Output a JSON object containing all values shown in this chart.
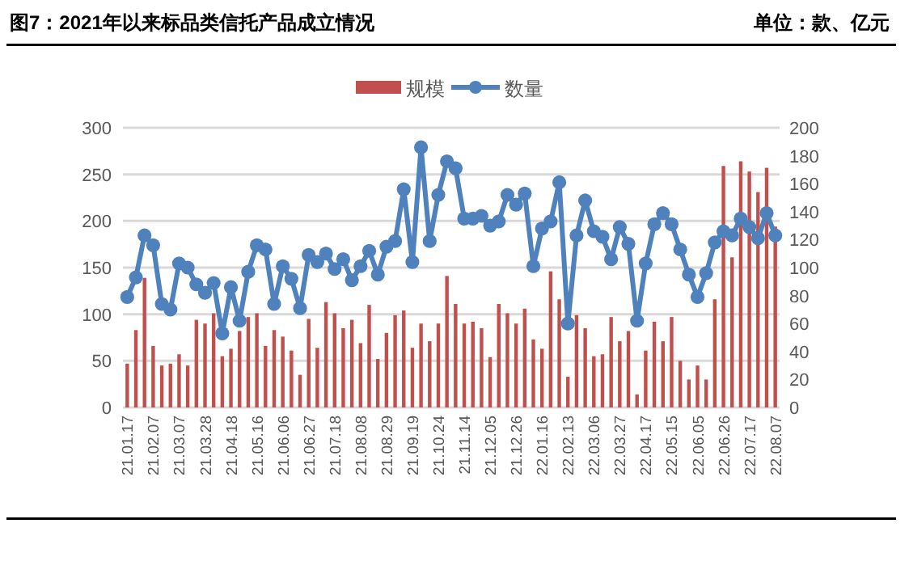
{
  "chart_data": {
    "type": "bar",
    "title": "图7：2021年以来标品类信托产品成立情况",
    "annotations": [
      "单位：款、亿元"
    ],
    "categories": [
      "21.01.17",
      null,
      null,
      "21.02.07",
      null,
      null,
      "21.03.07",
      null,
      null,
      "21.03.28",
      null,
      null,
      "21.04.18",
      null,
      null,
      "21.05.16",
      null,
      null,
      "21.06.06",
      null,
      null,
      "21.06.27",
      null,
      null,
      "21.07.18",
      null,
      null,
      "21.08.08",
      null,
      null,
      "21.08.29",
      null,
      null,
      "21.09.19",
      null,
      null,
      "21.10.24",
      null,
      null,
      "21.11.14",
      null,
      null,
      "21.12.05",
      null,
      null,
      "21.12.26",
      null,
      null,
      "22.01.16",
      null,
      null,
      "22.02.13",
      null,
      null,
      "22.03.06",
      null,
      null,
      "22.03.27",
      null,
      null,
      "22.04.17",
      null,
      null,
      "22.05.15",
      null,
      null,
      "22.06.05",
      null,
      null,
      "22.06.26",
      null,
      null,
      "22.07.17",
      null,
      null,
      "22.08.07"
    ],
    "series": [
      {
        "name": "规模",
        "color": "#c0504d",
        "values": [
          47,
          83,
          139,
          66,
          45,
          47,
          57,
          45,
          94,
          90,
          101,
          55,
          63,
          82,
          97,
          101,
          66,
          83,
          76,
          61,
          35,
          95,
          64,
          113,
          101,
          85,
          94,
          69,
          110,
          52,
          80,
          99,
          104,
          64,
          90,
          71,
          90,
          141,
          111,
          90,
          92,
          85,
          54,
          111,
          101,
          90,
          106,
          73,
          63,
          146,
          116,
          33,
          99,
          85,
          55,
          57,
          97,
          71,
          82,
          14,
          61,
          92,
          71,
          97,
          50,
          30,
          45,
          30,
          116,
          259,
          161,
          264,
          253,
          231,
          257,
          194
        ]
      },
      {
        "name": "数量",
        "type": "line",
        "axis": "y2",
        "color": "#4f81bd",
        "marker": "circle",
        "values": [
          79,
          93,
          123,
          116,
          74,
          70,
          103,
          100,
          88,
          82,
          89,
          53,
          86,
          62,
          97,
          116,
          113,
          74,
          101,
          92,
          71,
          109,
          104,
          110,
          99,
          106,
          91,
          101,
          112,
          95,
          115,
          119,
          156,
          104,
          186,
          119,
          152,
          176,
          171,
          135,
          135,
          137,
          130,
          133,
          152,
          145,
          153,
          101,
          128,
          133,
          161,
          60,
          123,
          148,
          126,
          122,
          106,
          129,
          117,
          62,
          103,
          131,
          139,
          131,
          113,
          95,
          79,
          96,
          118,
          126,
          123,
          135,
          129,
          121,
          139,
          123
        ]
      }
    ],
    "ylim": [
      0,
      300
    ],
    "yticks": [
      0,
      50,
      100,
      150,
      200,
      250,
      300
    ],
    "y2lim": [
      0,
      200
    ],
    "y2ticks": [
      0,
      20,
      40,
      60,
      80,
      100,
      120,
      140,
      160,
      180,
      200
    ],
    "grid": "y",
    "legend": "top"
  }
}
